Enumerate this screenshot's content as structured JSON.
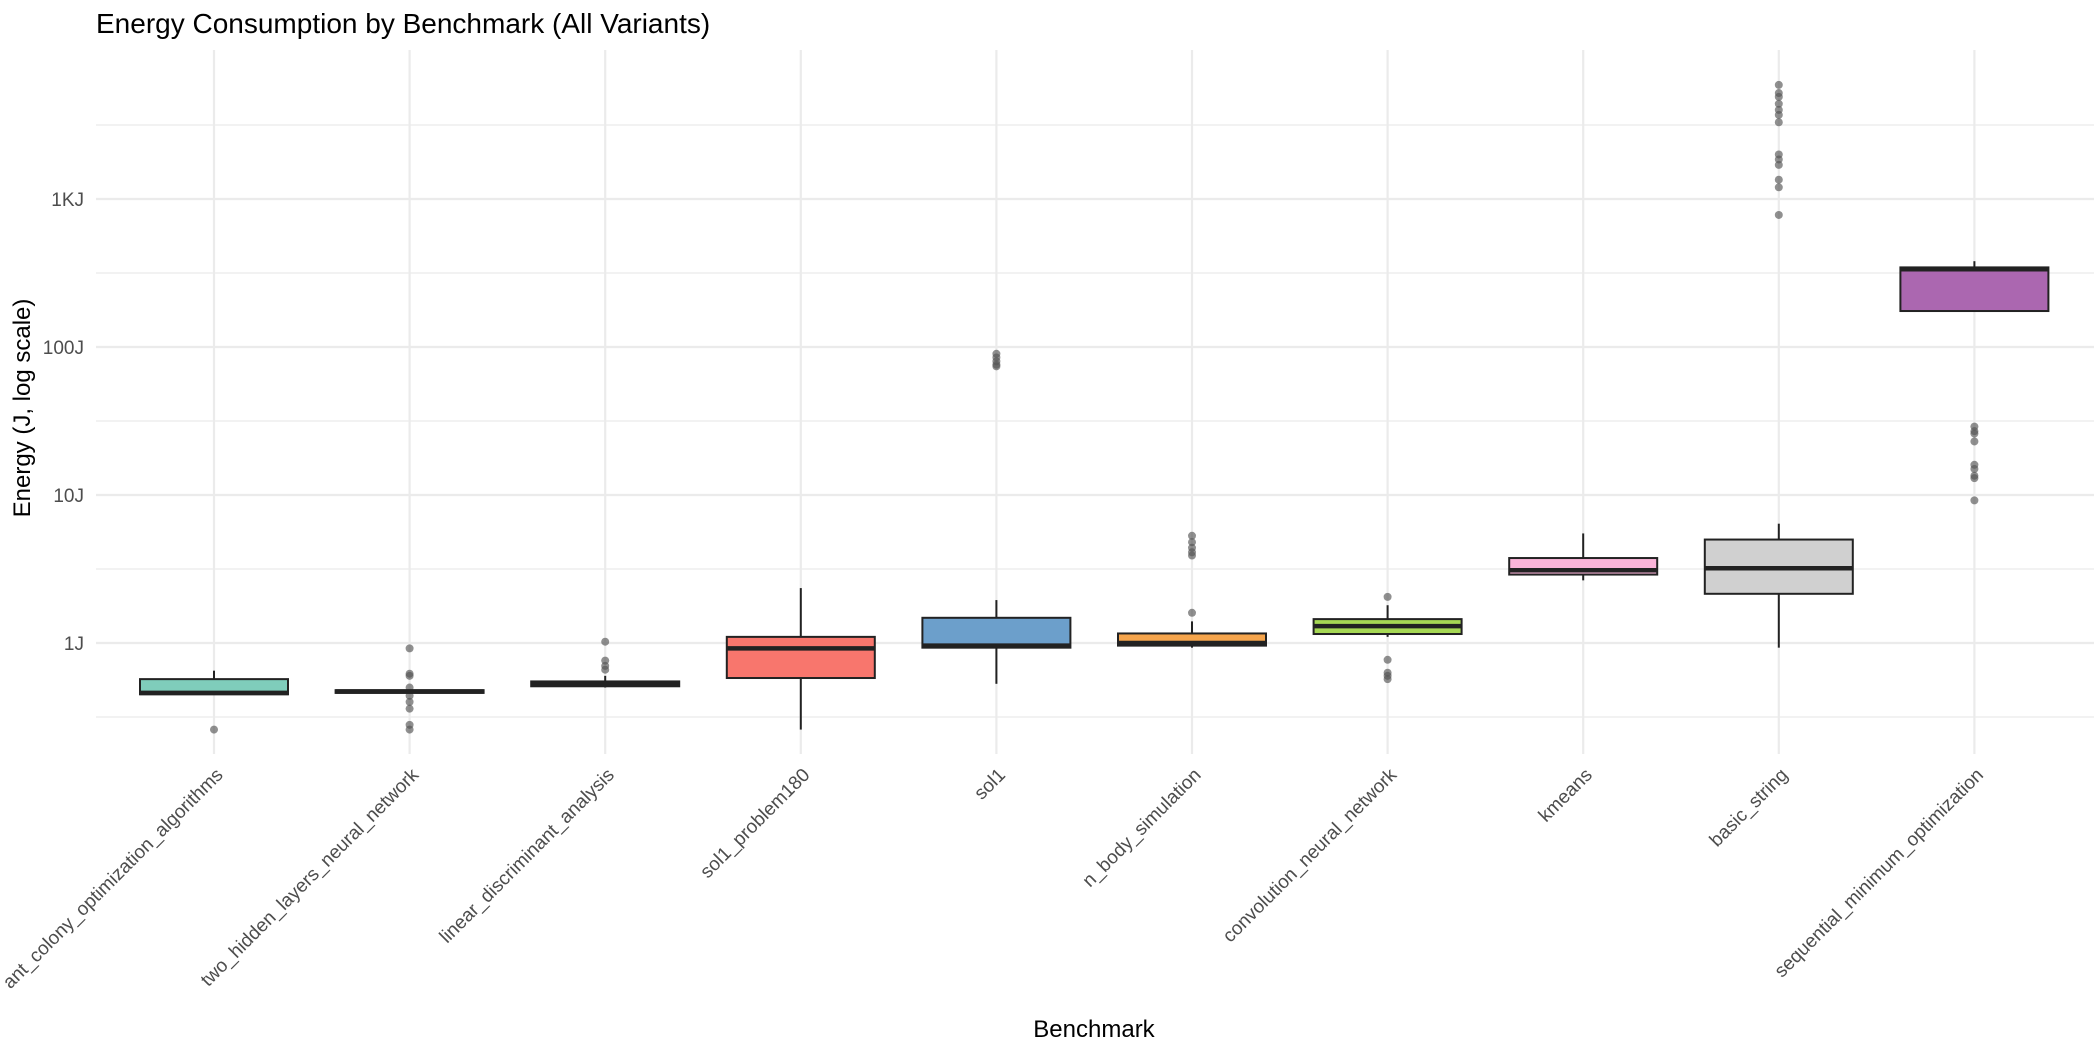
{
  "chart_data": {
    "type": "boxplot",
    "title": "Energy Consumption by Benchmark (All Variants)",
    "xlabel": "Benchmark",
    "ylabel": "Energy (J, log scale)",
    "yscale": "log10",
    "ylim": [
      0.18,
      9000
    ],
    "yticks": [
      {
        "value": 1,
        "label": "1J"
      },
      {
        "value": 10,
        "label": "10J"
      },
      {
        "value": 100,
        "label": "100J"
      },
      {
        "value": 1000,
        "label": "1KJ"
      }
    ],
    "grid": true,
    "legend": "none",
    "colors": {
      "grid": "#ebebeb",
      "box_outline": "#222222",
      "outlier": "#555555",
      "text": "#4d4d4d",
      "title": "#000000"
    },
    "boxes": [
      {
        "name": "ant_colony_optimization_algorithms",
        "fill": "#7fcdbb",
        "whisker_low": 0.45,
        "q1": 0.45,
        "median": 0.46,
        "q3": 0.57,
        "whisker_high": 0.65,
        "outliers": [
          0.26
        ]
      },
      {
        "name": "two_hidden_layers_neural_network",
        "fill": "#7fcdbb",
        "whisker_low": 0.46,
        "q1": 0.46,
        "median": 0.47,
        "q3": 0.48,
        "whisker_high": 0.48,
        "outliers": [
          0.92,
          0.62,
          0.6,
          0.5,
          0.44,
          0.4,
          0.36,
          0.28,
          0.26
        ]
      },
      {
        "name": "linear_discriminant_analysis",
        "fill": "#b3cde3",
        "whisker_low": 0.5,
        "q1": 0.51,
        "median": 0.53,
        "q3": 0.55,
        "whisker_high": 0.6,
        "outliers": [
          1.02,
          0.76,
          0.7,
          0.66
        ]
      },
      {
        "name": "sol1_problem180",
        "fill": "#f8766d",
        "whisker_low": 0.26,
        "q1": 0.58,
        "median": 0.92,
        "q3": 1.1,
        "whisker_high": 2.35,
        "outliers": []
      },
      {
        "name": "sol1",
        "fill": "#6c9fcb",
        "whisker_low": 0.53,
        "q1": 0.93,
        "median": 0.96,
        "q3": 1.48,
        "whisker_high": 1.95,
        "outliers": [
          90,
          85,
          80,
          76,
          74
        ]
      },
      {
        "name": "n_body_simulation",
        "fill": "#f6a54c",
        "whisker_low": 0.93,
        "q1": 0.96,
        "median": 1.0,
        "q3": 1.16,
        "whisker_high": 1.4,
        "outliers": [
          5.3,
          4.8,
          4.4,
          4.1,
          3.9,
          1.6
        ]
      },
      {
        "name": "convolution_neural_network",
        "fill": "#a6d854",
        "whisker_low": 1.1,
        "q1": 1.15,
        "median": 1.3,
        "q3": 1.45,
        "whisker_high": 1.8,
        "outliers": [
          2.05,
          0.77,
          0.63,
          0.6,
          0.57
        ]
      },
      {
        "name": "kmeans",
        "fill": "#fbb4d9",
        "whisker_low": 2.65,
        "q1": 2.9,
        "median": 3.1,
        "q3": 3.75,
        "whisker_high": 5.5,
        "outliers": []
      },
      {
        "name": "basic_string",
        "fill": "#d0d0d0",
        "whisker_low": 0.93,
        "q1": 2.15,
        "median": 3.2,
        "q3": 5.0,
        "whisker_high": 6.4,
        "outliers": [
          5900,
          5200,
          4900,
          4400,
          4000,
          3700,
          3300,
          2000,
          1850,
          1700,
          1350,
          1200,
          780
        ]
      },
      {
        "name": "sequential_minimum_optimization",
        "fill": "#ab67b0",
        "whisker_low": 175,
        "q1": 175,
        "median": 335,
        "q3": 345,
        "whisker_high": 380,
        "outliers": [
          29,
          27,
          26,
          23,
          16,
          15,
          13.5,
          13,
          9.2
        ]
      }
    ]
  }
}
